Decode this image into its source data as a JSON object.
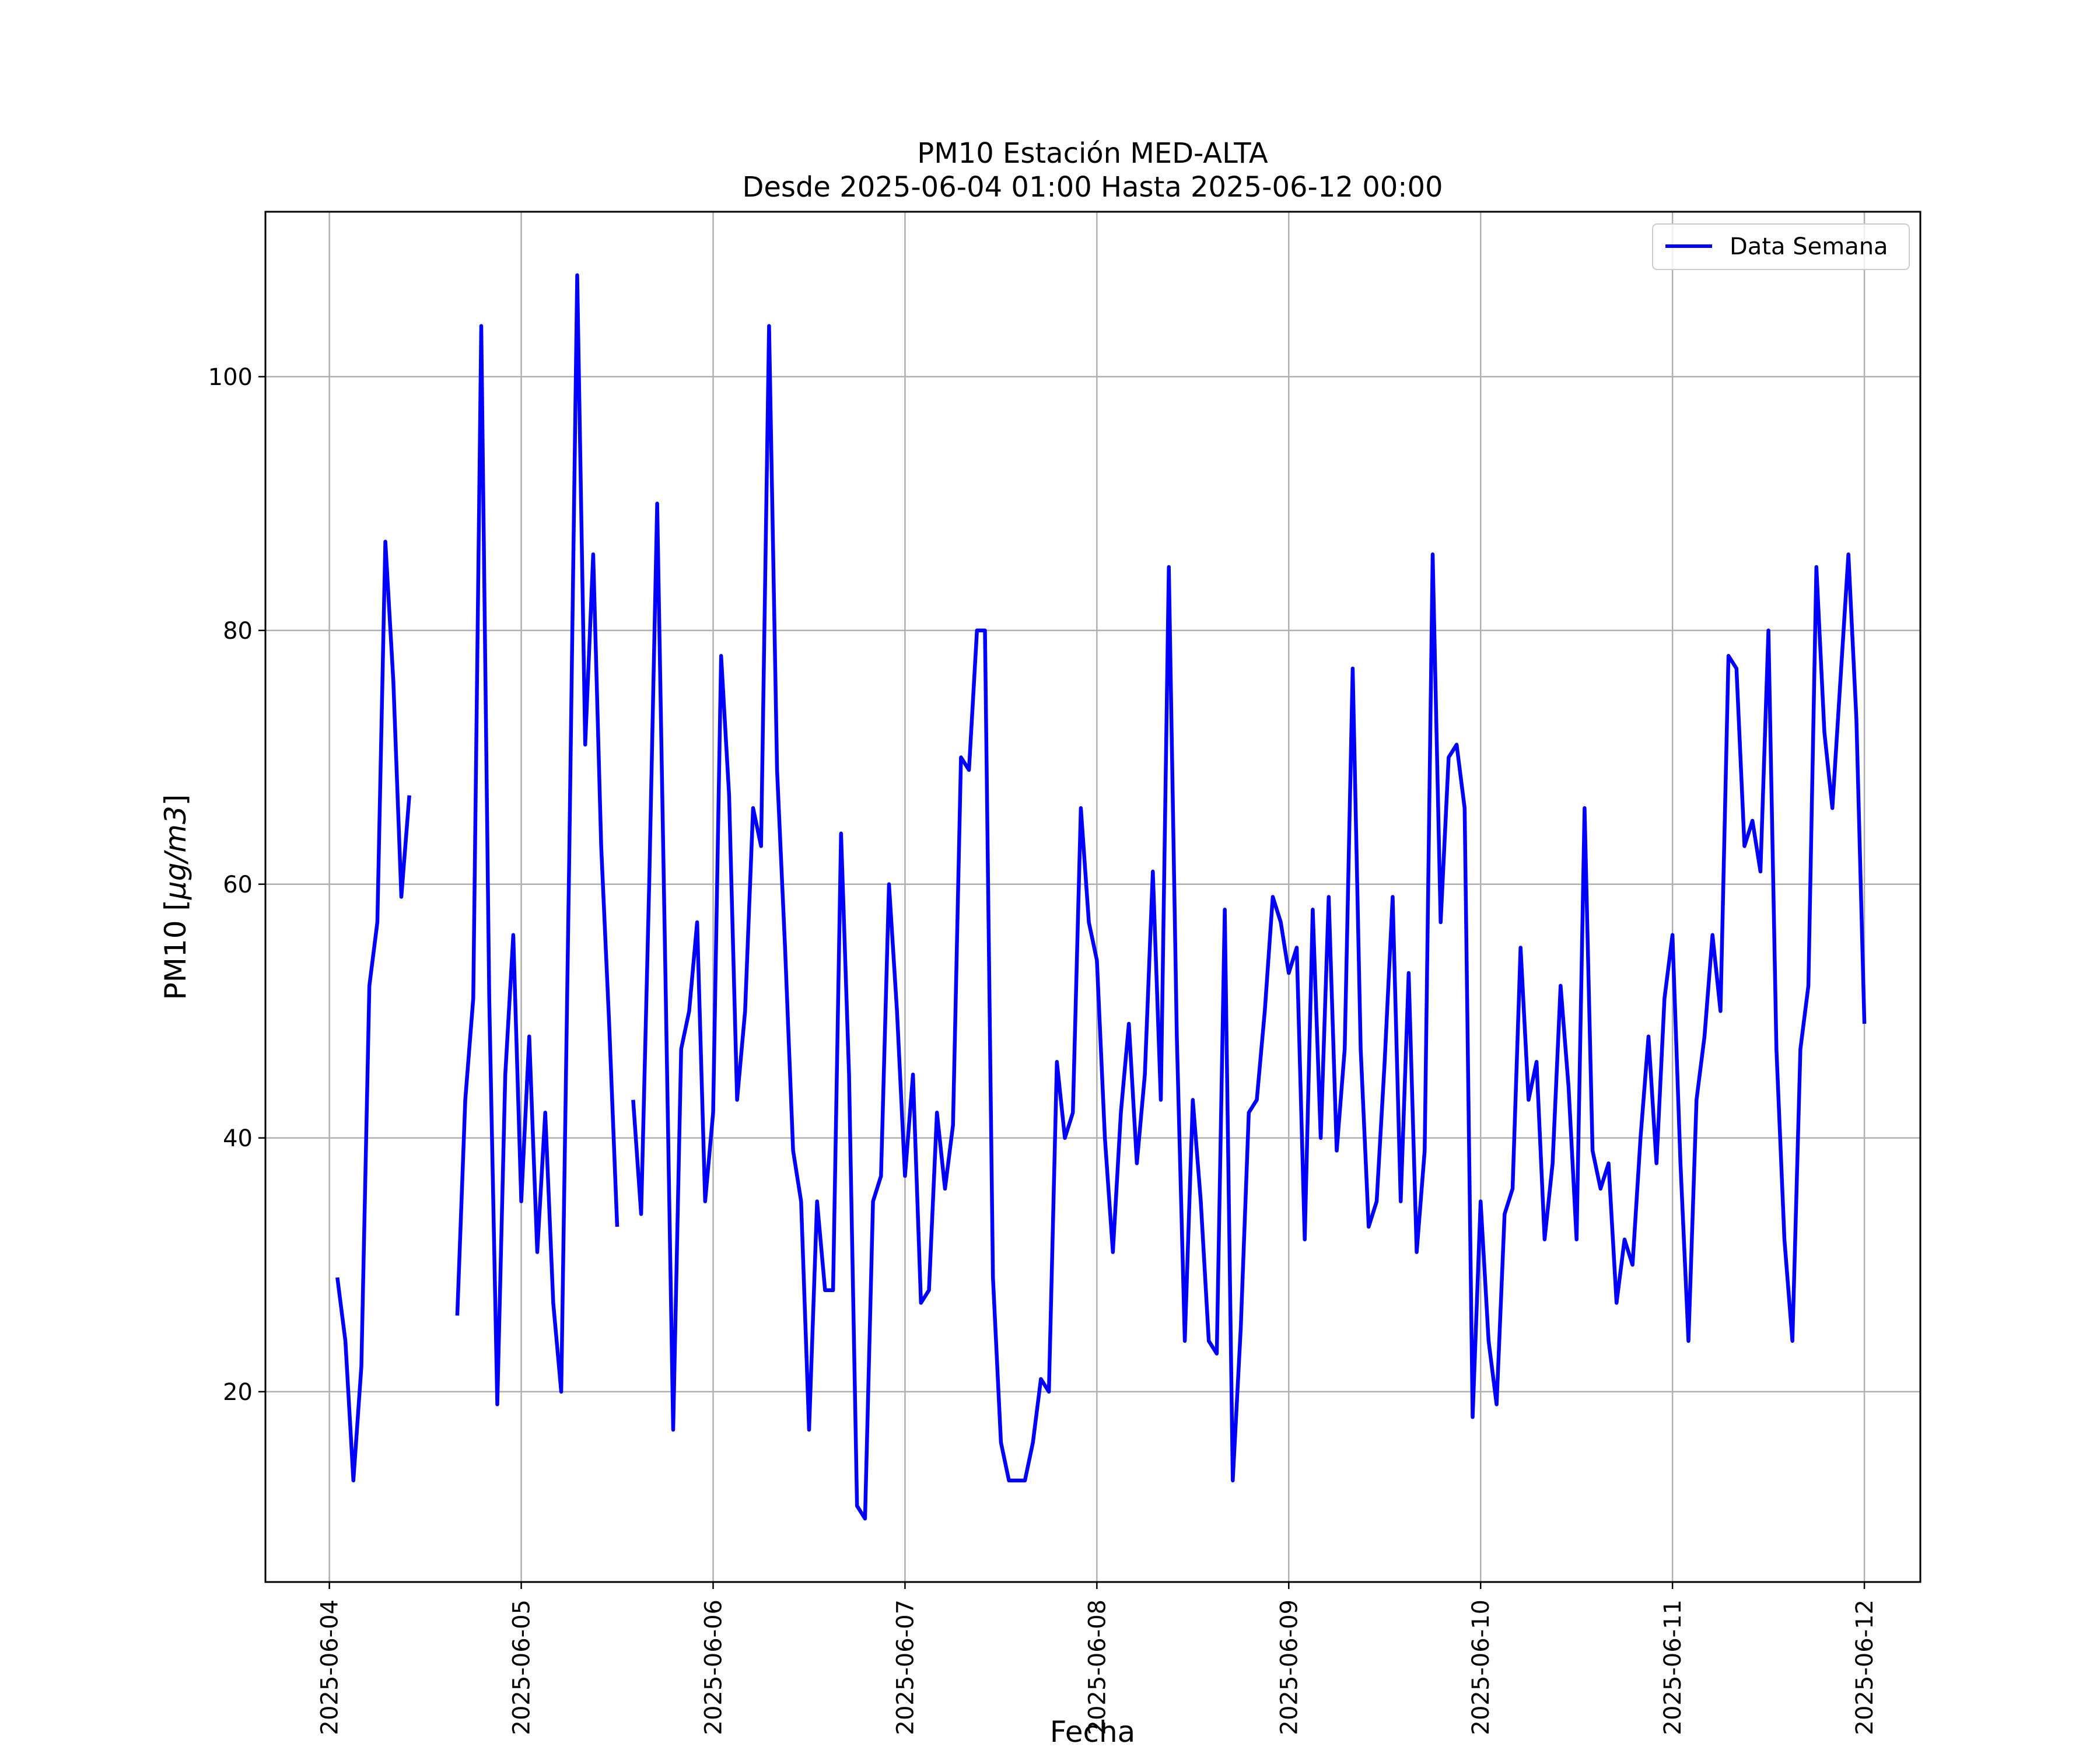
{
  "chart_data": {
    "type": "line",
    "title": "PM10 Estación MED-ALTA",
    "subtitle": "Desde 2025-06-04 01:00 Hasta 2025-06-12 00:00",
    "xlabel": "Fecha",
    "ylabel_plain": "PM10 [",
    "ylabel_math": "μg/m3",
    "ylabel_close": "]",
    "x_ticks": [
      "2025-06-04",
      "2025-06-05",
      "2025-06-06",
      "2025-06-07",
      "2025-06-08",
      "2025-06-09",
      "2025-06-10",
      "2025-06-11",
      "2025-06-12"
    ],
    "y_ticks": [
      "20",
      "40",
      "60",
      "80",
      "100"
    ],
    "xlim": [
      "2025-06-03 16:00",
      "2025-06-12 07:00"
    ],
    "ylim": [
      5,
      113
    ],
    "grid": true,
    "legend_position": "top-right",
    "line_color": "#0000ff",
    "series": [
      {
        "name": "Data Semana",
        "points": [
          [
            "2025-06-04 01:00",
            29
          ],
          [
            "2025-06-04 02:00",
            24
          ],
          [
            "2025-06-04 03:00",
            13
          ],
          [
            "2025-06-04 04:00",
            22
          ],
          [
            "2025-06-04 05:00",
            52
          ],
          [
            "2025-06-04 06:00",
            57
          ],
          [
            "2025-06-04 07:00",
            87
          ],
          [
            "2025-06-04 08:00",
            76
          ],
          [
            "2025-06-04 09:00",
            59
          ],
          [
            "2025-06-04 10:00",
            67
          ],
          [
            "2025-06-04 16:00",
            26
          ],
          [
            "2025-06-04 17:00",
            43
          ],
          [
            "2025-06-04 18:00",
            51
          ],
          [
            "2025-06-04 19:00",
            104
          ],
          [
            "2025-06-04 20:00",
            51
          ],
          [
            "2025-06-04 21:00",
            19
          ],
          [
            "2025-06-04 22:00",
            45
          ],
          [
            "2025-06-04 23:00",
            56
          ],
          [
            "2025-06-05 00:00",
            35
          ],
          [
            "2025-06-05 01:00",
            48
          ],
          [
            "2025-06-05 02:00",
            31
          ],
          [
            "2025-06-05 03:00",
            42
          ],
          [
            "2025-06-05 04:00",
            27
          ],
          [
            "2025-06-05 05:00",
            20
          ],
          [
            "2025-06-05 06:00",
            62
          ],
          [
            "2025-06-05 07:00",
            108
          ],
          [
            "2025-06-05 08:00",
            71
          ],
          [
            "2025-06-05 09:00",
            86
          ],
          [
            "2025-06-05 10:00",
            63
          ],
          [
            "2025-06-05 11:00",
            49
          ],
          [
            "2025-06-05 12:00",
            33
          ],
          [
            "2025-06-05 14:00",
            43
          ],
          [
            "2025-06-05 15:00",
            34
          ],
          [
            "2025-06-05 16:00",
            60
          ],
          [
            "2025-06-05 17:00",
            90
          ],
          [
            "2025-06-05 18:00",
            54
          ],
          [
            "2025-06-05 19:00",
            17
          ],
          [
            "2025-06-05 20:00",
            47
          ],
          [
            "2025-06-05 21:00",
            50
          ],
          [
            "2025-06-05 22:00",
            57
          ],
          [
            "2025-06-05 23:00",
            35
          ],
          [
            "2025-06-06 00:00",
            42
          ],
          [
            "2025-06-06 01:00",
            78
          ],
          [
            "2025-06-06 02:00",
            67
          ],
          [
            "2025-06-06 03:00",
            43
          ],
          [
            "2025-06-06 04:00",
            50
          ],
          [
            "2025-06-06 05:00",
            66
          ],
          [
            "2025-06-06 06:00",
            63
          ],
          [
            "2025-06-06 07:00",
            104
          ],
          [
            "2025-06-06 08:00",
            69
          ],
          [
            "2025-06-06 09:00",
            55
          ],
          [
            "2025-06-06 10:00",
            39
          ],
          [
            "2025-06-06 11:00",
            35
          ],
          [
            "2025-06-06 12:00",
            17
          ],
          [
            "2025-06-06 13:00",
            35
          ],
          [
            "2025-06-06 14:00",
            28
          ],
          [
            "2025-06-06 15:00",
            28
          ],
          [
            "2025-06-06 16:00",
            64
          ],
          [
            "2025-06-06 17:00",
            45
          ],
          [
            "2025-06-06 18:00",
            11
          ],
          [
            "2025-06-06 19:00",
            10
          ],
          [
            "2025-06-06 20:00",
            35
          ],
          [
            "2025-06-06 21:00",
            37
          ],
          [
            "2025-06-06 22:00",
            60
          ],
          [
            "2025-06-06 23:00",
            50
          ],
          [
            "2025-06-07 00:00",
            37
          ],
          [
            "2025-06-07 01:00",
            45
          ],
          [
            "2025-06-07 02:00",
            27
          ],
          [
            "2025-06-07 03:00",
            28
          ],
          [
            "2025-06-07 04:00",
            42
          ],
          [
            "2025-06-07 05:00",
            36
          ],
          [
            "2025-06-07 06:00",
            41
          ],
          [
            "2025-06-07 07:00",
            70
          ],
          [
            "2025-06-07 08:00",
            69
          ],
          [
            "2025-06-07 09:00",
            80
          ],
          [
            "2025-06-07 10:00",
            80
          ],
          [
            "2025-06-07 11:00",
            29
          ],
          [
            "2025-06-07 12:00",
            16
          ],
          [
            "2025-06-07 13:00",
            13
          ],
          [
            "2025-06-07 14:00",
            13
          ],
          [
            "2025-06-07 15:00",
            13
          ],
          [
            "2025-06-07 16:00",
            16
          ],
          [
            "2025-06-07 17:00",
            21
          ],
          [
            "2025-06-07 18:00",
            20
          ],
          [
            "2025-06-07 19:00",
            46
          ],
          [
            "2025-06-07 20:00",
            40
          ],
          [
            "2025-06-07 21:00",
            42
          ],
          [
            "2025-06-07 22:00",
            66
          ],
          [
            "2025-06-07 23:00",
            57
          ],
          [
            "2025-06-08 00:00",
            54
          ],
          [
            "2025-06-08 01:00",
            40
          ],
          [
            "2025-06-08 02:00",
            31
          ],
          [
            "2025-06-08 03:00",
            42
          ],
          [
            "2025-06-08 04:00",
            49
          ],
          [
            "2025-06-08 05:00",
            38
          ],
          [
            "2025-06-08 06:00",
            45
          ],
          [
            "2025-06-08 07:00",
            61
          ],
          [
            "2025-06-08 08:00",
            43
          ],
          [
            "2025-06-08 09:00",
            85
          ],
          [
            "2025-06-08 10:00",
            48
          ],
          [
            "2025-06-08 11:00",
            24
          ],
          [
            "2025-06-08 12:00",
            43
          ],
          [
            "2025-06-08 13:00",
            35
          ],
          [
            "2025-06-08 14:00",
            24
          ],
          [
            "2025-06-08 15:00",
            23
          ],
          [
            "2025-06-08 16:00",
            58
          ],
          [
            "2025-06-08 17:00",
            13
          ],
          [
            "2025-06-08 18:00",
            25
          ],
          [
            "2025-06-08 19:00",
            42
          ],
          [
            "2025-06-08 20:00",
            43
          ],
          [
            "2025-06-08 21:00",
            50
          ],
          [
            "2025-06-08 22:00",
            59
          ],
          [
            "2025-06-08 23:00",
            57
          ],
          [
            "2025-06-09 00:00",
            53
          ],
          [
            "2025-06-09 01:00",
            55
          ],
          [
            "2025-06-09 02:00",
            32
          ],
          [
            "2025-06-09 03:00",
            58
          ],
          [
            "2025-06-09 04:00",
            40
          ],
          [
            "2025-06-09 05:00",
            59
          ],
          [
            "2025-06-09 06:00",
            39
          ],
          [
            "2025-06-09 07:00",
            47
          ],
          [
            "2025-06-09 08:00",
            77
          ],
          [
            "2025-06-09 09:00",
            47
          ],
          [
            "2025-06-09 10:00",
            33
          ],
          [
            "2025-06-09 11:00",
            35
          ],
          [
            "2025-06-09 12:00",
            46
          ],
          [
            "2025-06-09 13:00",
            59
          ],
          [
            "2025-06-09 14:00",
            35
          ],
          [
            "2025-06-09 15:00",
            53
          ],
          [
            "2025-06-09 16:00",
            31
          ],
          [
            "2025-06-09 17:00",
            39
          ],
          [
            "2025-06-09 18:00",
            86
          ],
          [
            "2025-06-09 19:00",
            57
          ],
          [
            "2025-06-09 20:00",
            70
          ],
          [
            "2025-06-09 21:00",
            71
          ],
          [
            "2025-06-09 22:00",
            66
          ],
          [
            "2025-06-09 23:00",
            18
          ],
          [
            "2025-06-10 00:00",
            35
          ],
          [
            "2025-06-10 01:00",
            24
          ],
          [
            "2025-06-10 02:00",
            19
          ],
          [
            "2025-06-10 03:00",
            34
          ],
          [
            "2025-06-10 04:00",
            36
          ],
          [
            "2025-06-10 05:00",
            55
          ],
          [
            "2025-06-10 06:00",
            43
          ],
          [
            "2025-06-10 07:00",
            46
          ],
          [
            "2025-06-10 08:00",
            32
          ],
          [
            "2025-06-10 09:00",
            38
          ],
          [
            "2025-06-10 10:00",
            52
          ],
          [
            "2025-06-10 11:00",
            44
          ],
          [
            "2025-06-10 12:00",
            32
          ],
          [
            "2025-06-10 13:00",
            66
          ],
          [
            "2025-06-10 14:00",
            39
          ],
          [
            "2025-06-10 15:00",
            36
          ],
          [
            "2025-06-10 16:00",
            38
          ],
          [
            "2025-06-10 17:00",
            27
          ],
          [
            "2025-06-10 18:00",
            32
          ],
          [
            "2025-06-10 19:00",
            30
          ],
          [
            "2025-06-10 20:00",
            40
          ],
          [
            "2025-06-10 21:00",
            48
          ],
          [
            "2025-06-10 22:00",
            38
          ],
          [
            "2025-06-10 23:00",
            51
          ],
          [
            "2025-06-11 00:00",
            56
          ],
          [
            "2025-06-11 01:00",
            38
          ],
          [
            "2025-06-11 02:00",
            24
          ],
          [
            "2025-06-11 03:00",
            43
          ],
          [
            "2025-06-11 04:00",
            48
          ],
          [
            "2025-06-11 05:00",
            56
          ],
          [
            "2025-06-11 06:00",
            50
          ],
          [
            "2025-06-11 07:00",
            78
          ],
          [
            "2025-06-11 08:00",
            77
          ],
          [
            "2025-06-11 09:00",
            63
          ],
          [
            "2025-06-11 10:00",
            65
          ],
          [
            "2025-06-11 11:00",
            61
          ],
          [
            "2025-06-11 12:00",
            80
          ],
          [
            "2025-06-11 13:00",
            47
          ],
          [
            "2025-06-11 14:00",
            32
          ],
          [
            "2025-06-11 15:00",
            24
          ],
          [
            "2025-06-11 16:00",
            47
          ],
          [
            "2025-06-11 17:00",
            52
          ],
          [
            "2025-06-11 18:00",
            85
          ],
          [
            "2025-06-11 19:00",
            72
          ],
          [
            "2025-06-11 20:00",
            66
          ],
          [
            "2025-06-11 21:00",
            76
          ],
          [
            "2025-06-11 22:00",
            86
          ],
          [
            "2025-06-11 23:00",
            73
          ],
          [
            "2025-06-12 00:00",
            49
          ]
        ]
      }
    ]
  }
}
